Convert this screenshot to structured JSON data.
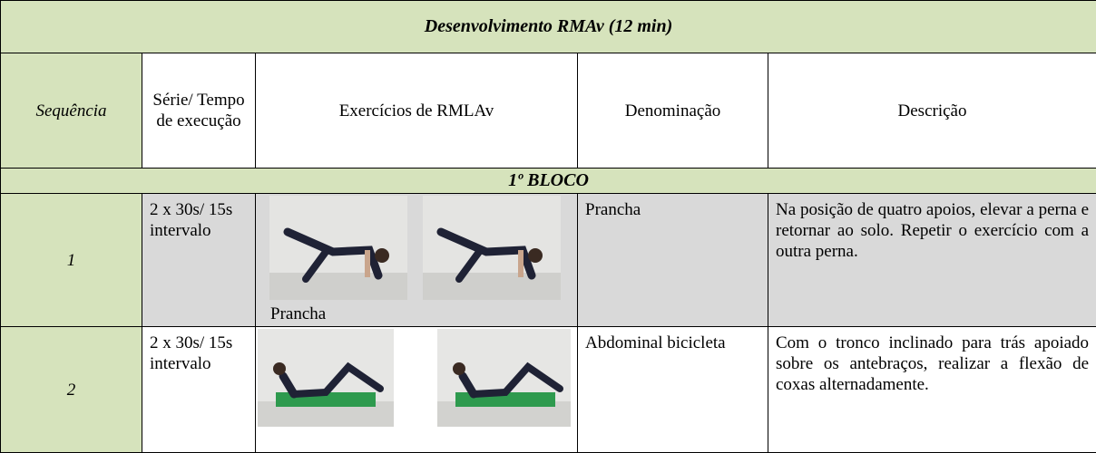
{
  "table": {
    "title": "Desenvolvimento RMAv (12 min)",
    "headers": [
      "Sequência",
      "Série/ Tempo de execução",
      "Exercícios de RMLAv",
      "Denominação",
      "Descrição"
    ],
    "block": "1º BLOCO",
    "rows": [
      {
        "sequence": "1",
        "serie": "2 x 30s/ 15s intervalo",
        "caption": "Prancha",
        "name": "Prancha",
        "description": "Na posição de quatro apoios, elevar a perna e retornar ao solo. Repetir o exercício com a outra perna."
      },
      {
        "sequence": "2",
        "serie": "2 x 30s/ 15s intervalo",
        "name": "Abdominal bicicleta",
        "description": "Com o tronco inclinado para trás apoiado sobre os antebraços, realizar a flexão de coxas alternadamente."
      }
    ]
  }
}
